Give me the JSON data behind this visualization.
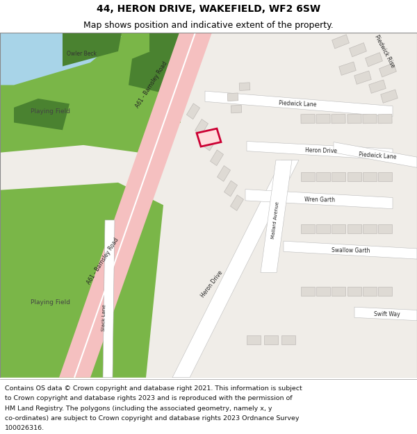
{
  "title_line1": "44, HERON DRIVE, WAKEFIELD, WF2 6SW",
  "title_line2": "Map shows position and indicative extent of the property.",
  "copyright_lines": [
    "Contains OS data © Crown copyright and database right 2021. This information is subject",
    "to Crown copyright and database rights 2023 and is reproduced with the permission of",
    "HM Land Registry. The polygons (including the associated geometry, namely x, y",
    "co-ordinates) are subject to Crown copyright and database rights 2023 Ordnance Survey",
    "100026316."
  ],
  "fig_width": 6.0,
  "fig_height": 6.25,
  "dpi": 100,
  "map_bg": "#f0ede8",
  "green_color": "#7ab648",
  "dark_green": "#4a8230",
  "blue_color": "#a8d4e8",
  "road_pink": "#f5c0c0",
  "building_fill": "#dedad4",
  "building_stroke": "#c0bcb8",
  "highlight_red": "#cc0033",
  "title_fontsize": 10,
  "subtitle_fontsize": 9,
  "copyright_fontsize": 6.8
}
